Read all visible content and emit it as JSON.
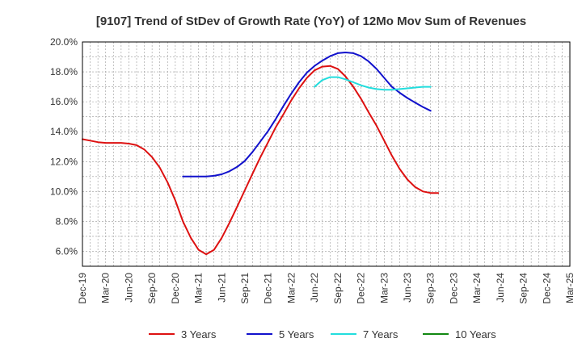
{
  "chart_data": {
    "type": "line",
    "title": "[9107]  Trend of StDev of Growth Rate (YoY) of 12Mo Mov Sum of Revenues",
    "xlabel": "",
    "ylabel": "",
    "ylim": [
      5.0,
      20.0
    ],
    "y_ticks": [
      "6.0%",
      "8.0%",
      "10.0%",
      "12.0%",
      "14.0%",
      "16.0%",
      "18.0%",
      "20.0%"
    ],
    "y_tick_values": [
      6,
      8,
      10,
      12,
      14,
      16,
      18,
      20
    ],
    "categories": [
      "Dec-19",
      "Mar-20",
      "Jun-20",
      "Sep-20",
      "Dec-20",
      "Mar-21",
      "Jun-21",
      "Sep-21",
      "Dec-21",
      "Mar-22",
      "Jun-22",
      "Sep-22",
      "Dec-22",
      "Mar-23",
      "Jun-23",
      "Sep-23",
      "Dec-23",
      "Mar-24",
      "Jun-24",
      "Sep-24",
      "Dec-24",
      "Mar-25"
    ],
    "grid": true,
    "legend_position": "bottom",
    "series": [
      {
        "name": "3 Years",
        "color": "#dd1111",
        "points": [
          [
            0,
            13.5
          ],
          [
            0.33,
            13.4
          ],
          [
            0.67,
            13.3
          ],
          [
            1,
            13.25
          ],
          [
            1.33,
            13.25
          ],
          [
            1.67,
            13.25
          ],
          [
            2,
            13.2
          ],
          [
            2.33,
            13.1
          ],
          [
            2.67,
            12.8
          ],
          [
            3,
            12.3
          ],
          [
            3.33,
            11.6
          ],
          [
            3.67,
            10.6
          ],
          [
            4,
            9.4
          ],
          [
            4.33,
            8.0
          ],
          [
            4.67,
            6.9
          ],
          [
            5,
            6.1
          ],
          [
            5.33,
            5.8
          ],
          [
            5.67,
            6.1
          ],
          [
            6,
            6.9
          ],
          [
            6.33,
            7.9
          ],
          [
            6.67,
            9.0
          ],
          [
            7,
            10.1
          ],
          [
            7.33,
            11.2
          ],
          [
            7.67,
            12.3
          ],
          [
            8,
            13.3
          ],
          [
            8.33,
            14.3
          ],
          [
            8.67,
            15.2
          ],
          [
            9,
            16.1
          ],
          [
            9.33,
            16.9
          ],
          [
            9.67,
            17.6
          ],
          [
            10,
            18.1
          ],
          [
            10.33,
            18.35
          ],
          [
            10.67,
            18.4
          ],
          [
            11,
            18.2
          ],
          [
            11.33,
            17.7
          ],
          [
            11.67,
            17.0
          ],
          [
            12,
            16.2
          ],
          [
            12.33,
            15.3
          ],
          [
            12.67,
            14.4
          ],
          [
            13,
            13.4
          ],
          [
            13.33,
            12.4
          ],
          [
            13.67,
            11.5
          ],
          [
            14,
            10.8
          ],
          [
            14.33,
            10.3
          ],
          [
            14.67,
            10.0
          ],
          [
            15,
            9.9
          ],
          [
            15.33,
            9.9
          ]
        ]
      },
      {
        "name": "5 Years",
        "color": "#1111cc",
        "points": [
          [
            4.33,
            11.0
          ],
          [
            4.67,
            11.0
          ],
          [
            5,
            11.0
          ],
          [
            5.33,
            11.0
          ],
          [
            5.67,
            11.05
          ],
          [
            6,
            11.15
          ],
          [
            6.33,
            11.35
          ],
          [
            6.67,
            11.65
          ],
          [
            7,
            12.05
          ],
          [
            7.33,
            12.65
          ],
          [
            7.67,
            13.35
          ],
          [
            8,
            14.05
          ],
          [
            8.33,
            14.85
          ],
          [
            8.67,
            15.75
          ],
          [
            9,
            16.55
          ],
          [
            9.33,
            17.3
          ],
          [
            9.67,
            17.95
          ],
          [
            10,
            18.4
          ],
          [
            10.33,
            18.75
          ],
          [
            10.67,
            19.05
          ],
          [
            11,
            19.25
          ],
          [
            11.33,
            19.3
          ],
          [
            11.67,
            19.25
          ],
          [
            12,
            19.05
          ],
          [
            12.33,
            18.7
          ],
          [
            12.67,
            18.2
          ],
          [
            13,
            17.6
          ],
          [
            13.33,
            17.0
          ],
          [
            13.67,
            16.6
          ],
          [
            14,
            16.25
          ],
          [
            14.33,
            15.95
          ],
          [
            14.67,
            15.65
          ],
          [
            15,
            15.4
          ]
        ]
      },
      {
        "name": "7 Years",
        "color": "#22dddd",
        "points": [
          [
            10,
            17.0
          ],
          [
            10.33,
            17.45
          ],
          [
            10.67,
            17.65
          ],
          [
            11,
            17.65
          ],
          [
            11.33,
            17.5
          ],
          [
            11.67,
            17.3
          ],
          [
            12,
            17.1
          ],
          [
            12.33,
            16.95
          ],
          [
            12.67,
            16.85
          ],
          [
            13,
            16.8
          ],
          [
            13.33,
            16.8
          ],
          [
            13.67,
            16.85
          ],
          [
            14,
            16.9
          ],
          [
            14.33,
            16.95
          ],
          [
            14.67,
            17.0
          ],
          [
            15,
            17.0
          ]
        ]
      },
      {
        "name": "10 Years",
        "color": "#118811",
        "points": []
      }
    ]
  }
}
